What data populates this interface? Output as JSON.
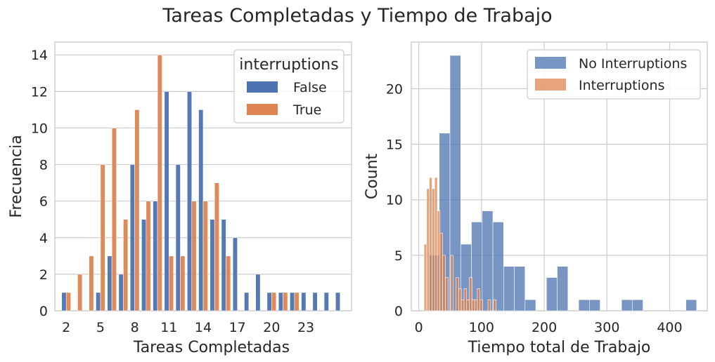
{
  "suptitle": "Tareas Completadas y Tiempo de Trabajo",
  "colors": {
    "false": "#4c72b0",
    "true": "#dd8452",
    "grid": "#cccccc",
    "spine": "#cccccc",
    "text": "#262626"
  },
  "chart_data": [
    {
      "type": "bar",
      "title": "",
      "xlabel": "Tareas Completadas",
      "ylabel": "Frecuencia",
      "categories": [
        2,
        3,
        4,
        5,
        6,
        7,
        8,
        9,
        10,
        11,
        12,
        13,
        14,
        15,
        16,
        17,
        18,
        19,
        20,
        21,
        22,
        23,
        24,
        25,
        26
      ],
      "x_tick_labels": [
        "2",
        "5",
        "8",
        "11",
        "14",
        "17",
        "20",
        "23"
      ],
      "x_tick_values": [
        2,
        5,
        8,
        11,
        14,
        17,
        20,
        23
      ],
      "ylim": [
        0,
        14.7
      ],
      "y_ticks": [
        0,
        2,
        4,
        6,
        8,
        10,
        12,
        14
      ],
      "grid": "horizontal",
      "legend": {
        "title": "interruptions",
        "placement": "upper right",
        "entries": [
          "False",
          "True"
        ]
      },
      "series": [
        {
          "name": "False",
          "values": [
            1,
            0,
            0,
            1,
            3,
            2,
            8,
            5,
            6,
            12,
            8,
            12,
            11,
            5,
            5,
            4,
            1,
            2,
            1,
            1,
            1,
            1,
            1,
            1,
            1
          ]
        },
        {
          "name": "True",
          "values": [
            1,
            2,
            3,
            8,
            10,
            5,
            11,
            6,
            14,
            3,
            3,
            6,
            6,
            7,
            3,
            0,
            0,
            0,
            1,
            1,
            1,
            0,
            0,
            0,
            0
          ]
        }
      ]
    },
    {
      "type": "histogram",
      "title": "",
      "xlabel": "Tiempo total de Trabajo",
      "ylabel": "Count",
      "xlim": [
        -12,
        460
      ],
      "ylim": [
        0,
        24.2
      ],
      "x_ticks": [
        0,
        100,
        200,
        300,
        400
      ],
      "y_ticks": [
        0,
        5,
        10,
        15,
        20
      ],
      "grid": "both",
      "legend": {
        "placement": "upper right",
        "entries": [
          "No Interruptions",
          "Interruptions"
        ]
      },
      "series": [
        {
          "name": "No Interruptions",
          "bin_start": 15.5,
          "bin_width": 17.1,
          "counts": [
            5,
            16,
            23,
            6,
            8,
            9,
            8,
            4,
            4,
            1,
            0,
            3,
            4,
            0,
            1,
            1,
            0,
            0,
            1,
            1,
            0,
            0,
            0,
            0,
            1
          ]
        },
        {
          "name": "Interruptions",
          "bin_start": 8.3,
          "bin_width": 4.25,
          "counts": [
            6,
            11,
            12,
            11,
            12,
            9,
            7,
            5,
            3,
            0,
            5,
            0,
            3,
            2,
            1,
            2,
            1,
            3,
            1,
            1,
            2,
            1,
            0,
            0,
            1,
            0,
            1
          ]
        }
      ]
    }
  ]
}
